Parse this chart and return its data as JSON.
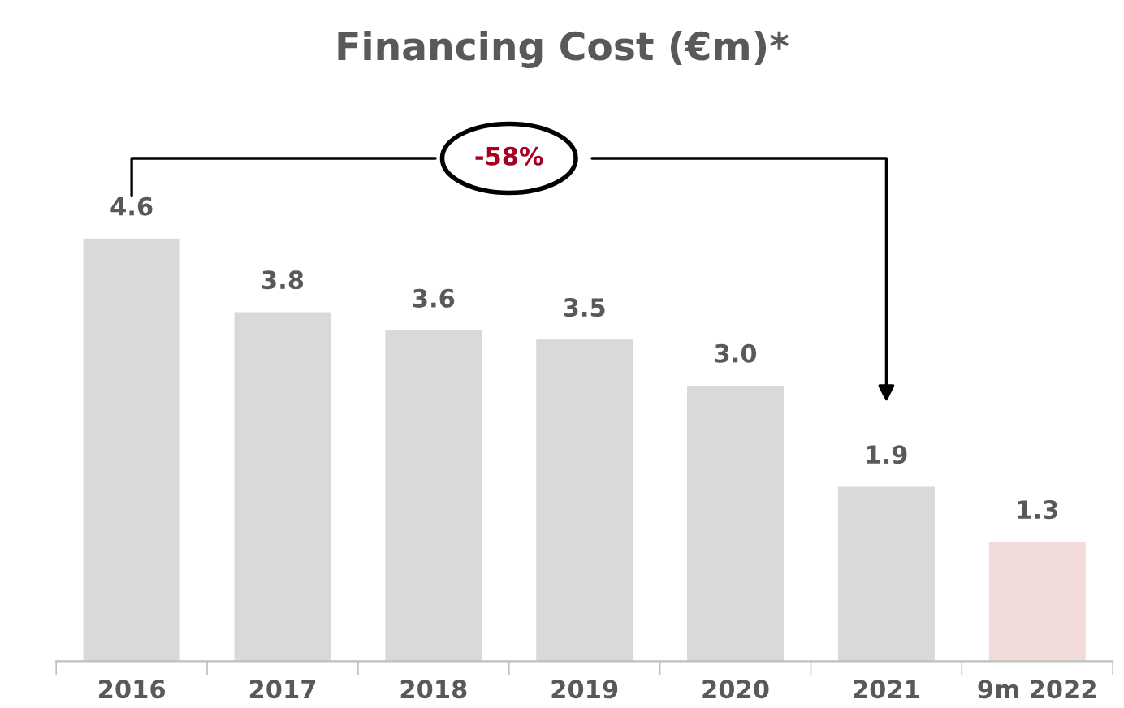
{
  "chart_data": {
    "type": "bar",
    "title": "Financing Cost (€m)*",
    "categories": [
      "2016",
      "2017",
      "2018",
      "2019",
      "2020",
      "2021",
      "9m 2022"
    ],
    "values": [
      4.6,
      3.8,
      3.6,
      3.5,
      3.0,
      1.9,
      1.3
    ],
    "colors": [
      "#d9d9d9",
      "#d9d9d9",
      "#d9d9d9",
      "#d9d9d9",
      "#d9d9d9",
      "#d9d9d9",
      "#f2dcdb"
    ],
    "value_labels": [
      "4.6",
      "3.8",
      "3.6",
      "3.5",
      "3.0",
      "1.9",
      "1.3"
    ],
    "annotations": [
      "-58%"
    ],
    "tick_labels": "x",
    "grid": false,
    "legend": false
  }
}
